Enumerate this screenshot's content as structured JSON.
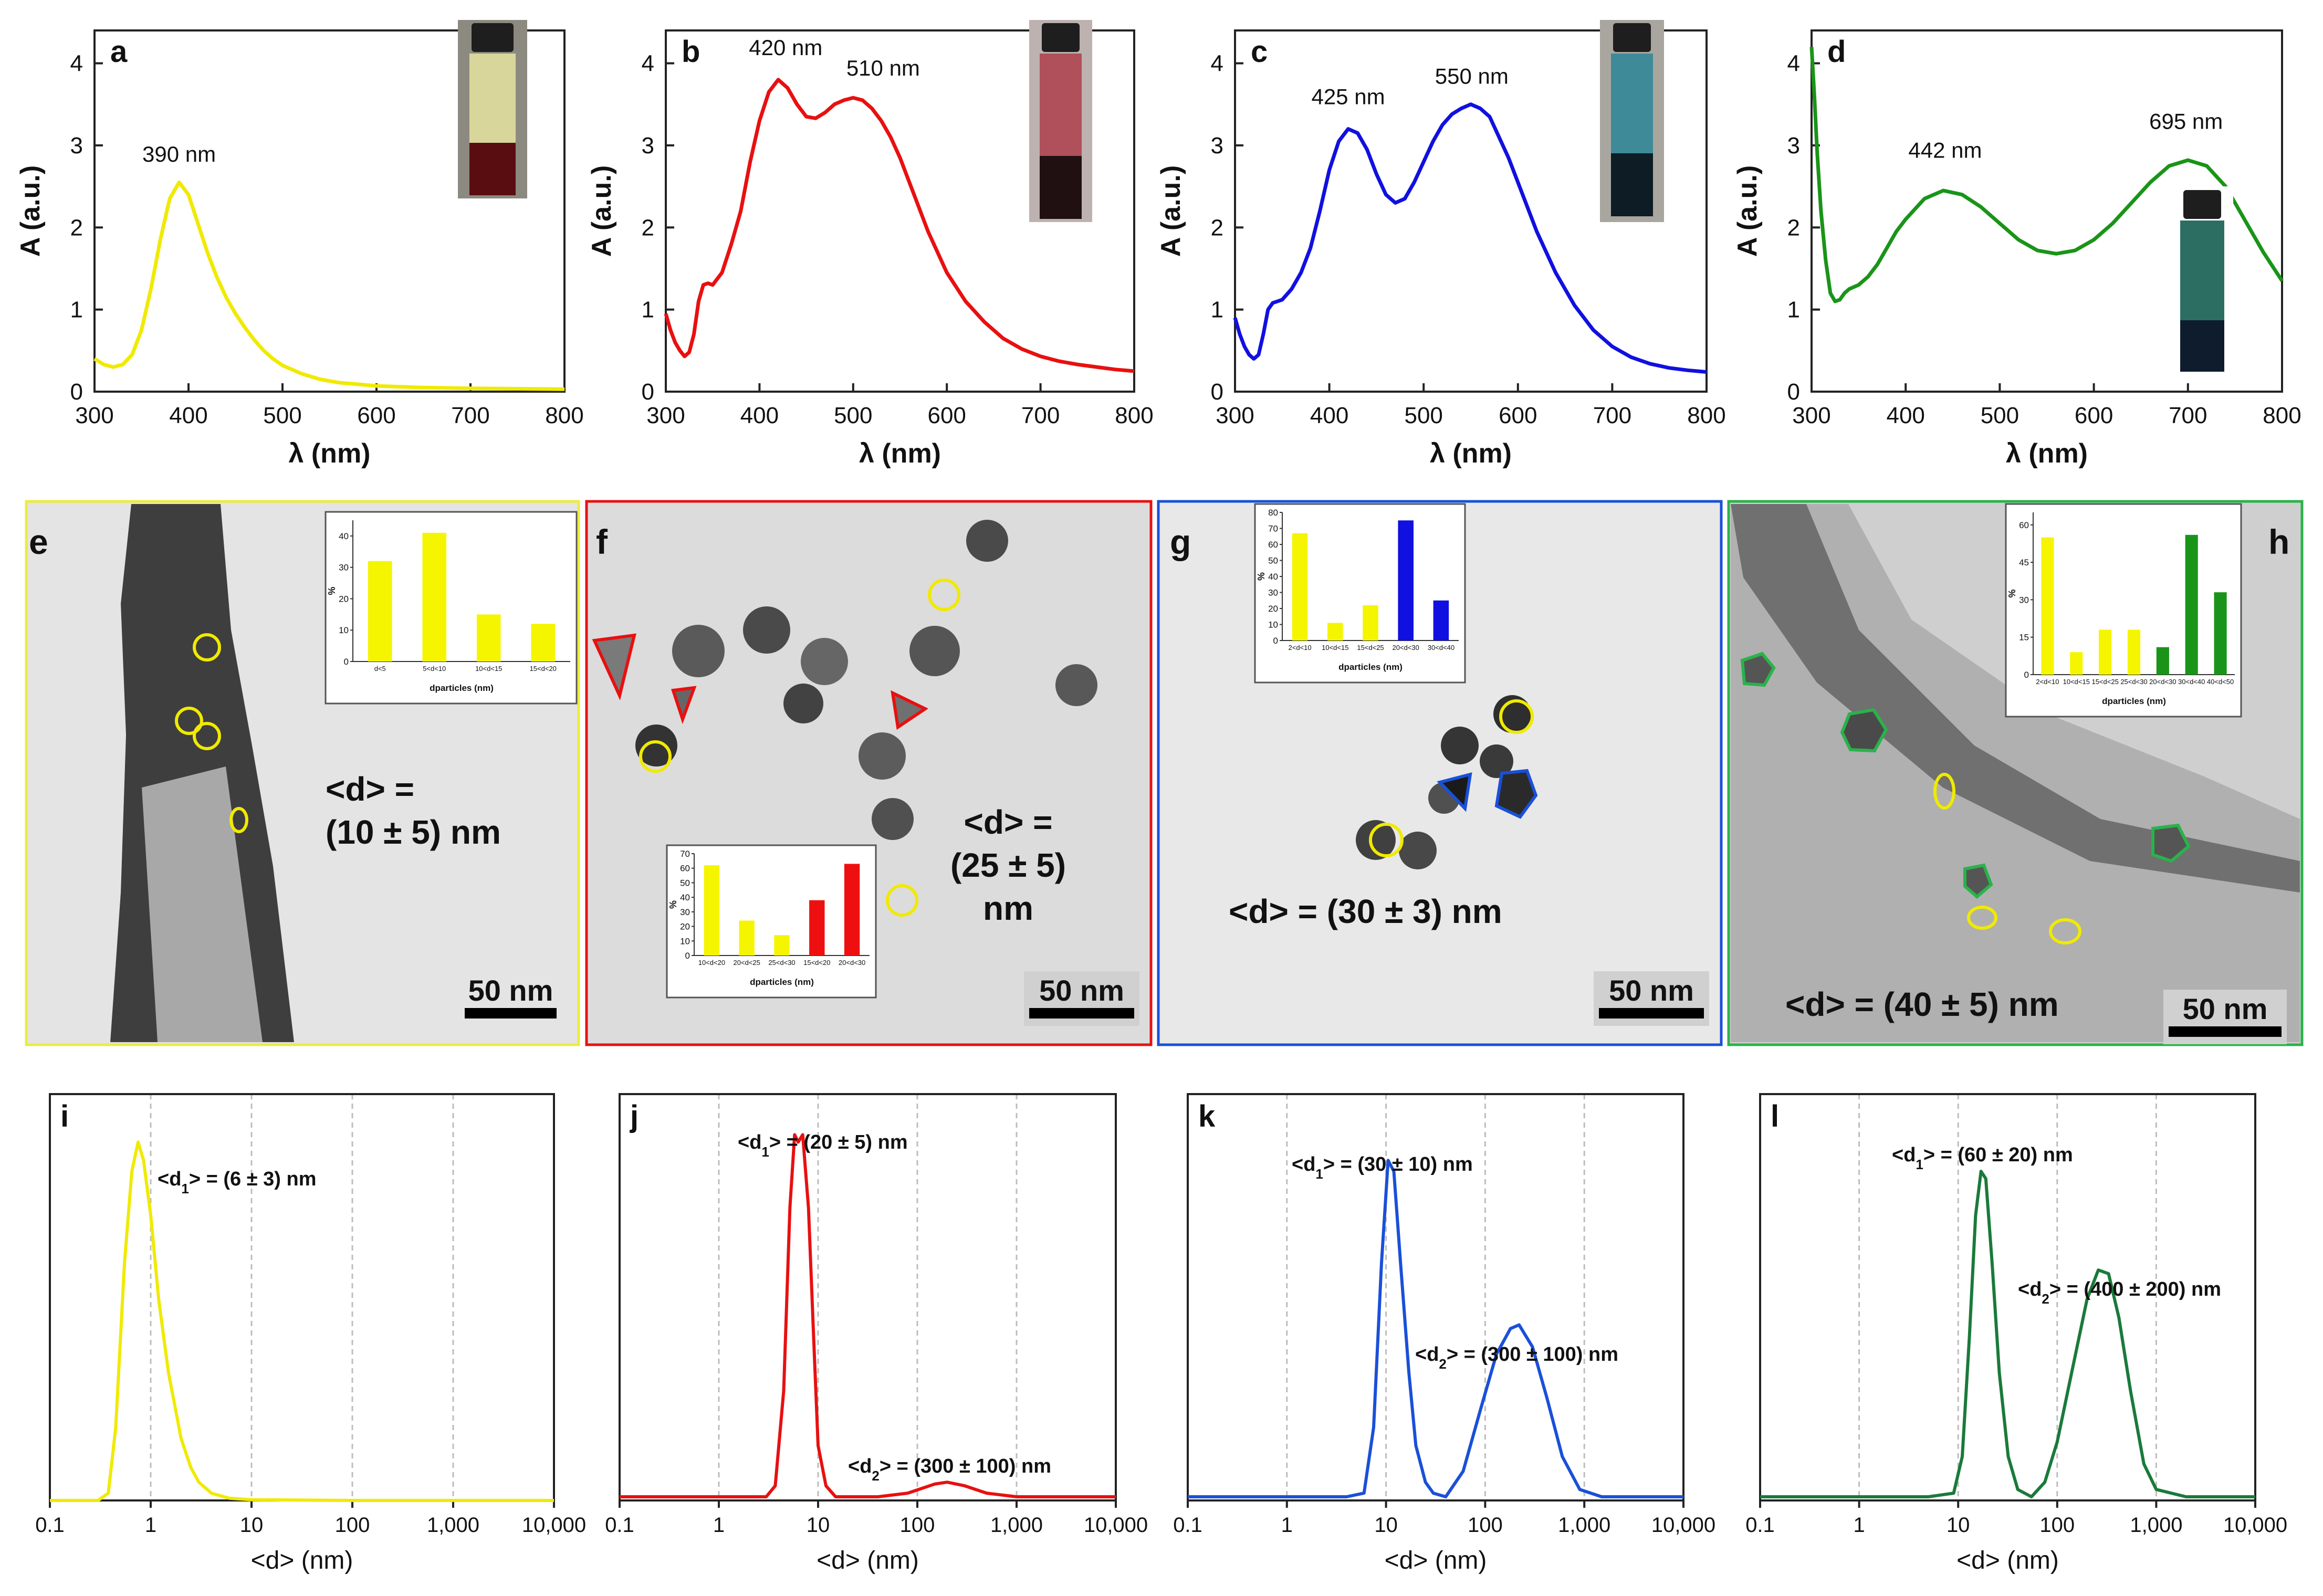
{
  "chart_data": [
    {
      "id": "a",
      "type": "line",
      "panel_label": "a",
      "xlabel": "λ (nm)",
      "ylabel": "A (a.u.)",
      "xlim": [
        300,
        800
      ],
      "ylim": [
        0,
        4.4
      ],
      "xticks": [
        300,
        400,
        500,
        600,
        700,
        800
      ],
      "yticks": [
        0,
        1,
        2,
        3,
        4
      ],
      "color": "#f0ea00",
      "series": [
        {
          "name": "spectrum a",
          "x": [
            300,
            310,
            320,
            330,
            340,
            350,
            360,
            370,
            380,
            390,
            400,
            410,
            420,
            430,
            440,
            450,
            460,
            470,
            480,
            490,
            500,
            520,
            540,
            560,
            580,
            600,
            650,
            700,
            750,
            800
          ],
          "y": [
            0.4,
            0.33,
            0.3,
            0.33,
            0.45,
            0.75,
            1.25,
            1.85,
            2.35,
            2.55,
            2.4,
            2.05,
            1.7,
            1.4,
            1.15,
            0.95,
            0.78,
            0.63,
            0.5,
            0.4,
            0.32,
            0.22,
            0.15,
            0.11,
            0.09,
            0.07,
            0.05,
            0.04,
            0.035,
            0.03
          ]
        }
      ],
      "annotations": [
        {
          "text": "390 nm",
          "x": 390,
          "y": 2.8
        }
      ]
    },
    {
      "id": "b",
      "type": "line",
      "panel_label": "b",
      "xlabel": "λ (nm)",
      "ylabel": "A (a.u.)",
      "xlim": [
        300,
        800
      ],
      "ylim": [
        0,
        4.4
      ],
      "xticks": [
        300,
        400,
        500,
        600,
        700,
        800
      ],
      "yticks": [
        0,
        1,
        2,
        3,
        4
      ],
      "color": "#e81010",
      "series": [
        {
          "name": "spectrum b",
          "x": [
            300,
            305,
            310,
            315,
            320,
            325,
            330,
            335,
            340,
            345,
            350,
            360,
            370,
            380,
            390,
            400,
            410,
            420,
            430,
            440,
            450,
            460,
            470,
            480,
            490,
            500,
            510,
            520,
            530,
            540,
            550,
            560,
            570,
            580,
            600,
            620,
            640,
            660,
            680,
            700,
            720,
            740,
            760,
            780,
            800
          ],
          "y": [
            0.95,
            0.75,
            0.6,
            0.5,
            0.43,
            0.48,
            0.7,
            1.1,
            1.3,
            1.32,
            1.3,
            1.45,
            1.8,
            2.2,
            2.8,
            3.3,
            3.65,
            3.8,
            3.7,
            3.5,
            3.35,
            3.33,
            3.4,
            3.5,
            3.55,
            3.58,
            3.55,
            3.45,
            3.3,
            3.1,
            2.85,
            2.55,
            2.25,
            1.95,
            1.45,
            1.1,
            0.85,
            0.65,
            0.52,
            0.43,
            0.37,
            0.33,
            0.3,
            0.27,
            0.25
          ]
        }
      ],
      "annotations": [
        {
          "text": "420 nm",
          "x": 428,
          "y": 4.1
        },
        {
          "text": "510 nm",
          "x": 532,
          "y": 3.85
        }
      ]
    },
    {
      "id": "c",
      "type": "line",
      "panel_label": "c",
      "xlabel": "λ (nm)",
      "ylabel": "A (a.u.)",
      "xlim": [
        300,
        800
      ],
      "ylim": [
        0,
        4.4
      ],
      "xticks": [
        300,
        400,
        500,
        600,
        700,
        800
      ],
      "yticks": [
        0,
        1,
        2,
        3,
        4
      ],
      "color": "#1010e0",
      "series": [
        {
          "name": "spectrum c",
          "x": [
            300,
            305,
            310,
            315,
            320,
            325,
            330,
            335,
            340,
            345,
            350,
            360,
            370,
            380,
            390,
            400,
            410,
            420,
            430,
            440,
            450,
            460,
            470,
            480,
            490,
            500,
            510,
            520,
            530,
            540,
            550,
            560,
            570,
            580,
            590,
            600,
            620,
            640,
            660,
            680,
            700,
            720,
            740,
            760,
            780,
            800
          ],
          "y": [
            0.9,
            0.7,
            0.55,
            0.45,
            0.4,
            0.45,
            0.7,
            1.0,
            1.08,
            1.1,
            1.12,
            1.25,
            1.45,
            1.75,
            2.2,
            2.7,
            3.05,
            3.2,
            3.15,
            2.95,
            2.65,
            2.4,
            2.3,
            2.35,
            2.55,
            2.8,
            3.05,
            3.25,
            3.38,
            3.45,
            3.5,
            3.45,
            3.35,
            3.1,
            2.85,
            2.55,
            1.95,
            1.45,
            1.05,
            0.75,
            0.55,
            0.42,
            0.34,
            0.29,
            0.26,
            0.24
          ]
        }
      ],
      "annotations": [
        {
          "text": "425 nm",
          "x": 420,
          "y": 3.5
        },
        {
          "text": "550 nm",
          "x": 551,
          "y": 3.75
        }
      ]
    },
    {
      "id": "d",
      "type": "line",
      "panel_label": "d",
      "xlabel": "λ (nm)",
      "ylabel": "A (a.u.)",
      "xlim": [
        300,
        800
      ],
      "ylim": [
        0,
        4.4
      ],
      "xticks": [
        300,
        400,
        500,
        600,
        700,
        800
      ],
      "yticks": [
        0,
        1,
        2,
        3,
        4
      ],
      "color": "#1a9418",
      "series": [
        {
          "name": "spectrum d",
          "x": [
            300,
            303,
            306,
            310,
            315,
            320,
            325,
            330,
            335,
            340,
            350,
            360,
            370,
            380,
            390,
            400,
            420,
            440,
            460,
            480,
            500,
            520,
            540,
            560,
            580,
            600,
            620,
            640,
            660,
            680,
            700,
            720,
            740,
            760,
            780,
            800
          ],
          "y": [
            4.2,
            3.6,
            2.9,
            2.2,
            1.6,
            1.2,
            1.1,
            1.12,
            1.2,
            1.25,
            1.3,
            1.4,
            1.55,
            1.75,
            1.95,
            2.1,
            2.35,
            2.45,
            2.4,
            2.25,
            2.05,
            1.85,
            1.72,
            1.68,
            1.72,
            1.85,
            2.05,
            2.3,
            2.55,
            2.75,
            2.82,
            2.75,
            2.5,
            2.1,
            1.7,
            1.35
          ]
        }
      ],
      "annotations": [
        {
          "text": "442 nm",
          "x": 442,
          "y": 2.85
        },
        {
          "text": "695 nm",
          "x": 698,
          "y": 3.2
        }
      ]
    },
    {
      "id": "e_hist",
      "type": "bar",
      "panel_label": "e",
      "xlabel": "dparticles (nm)",
      "ylabel": "%",
      "ylim": [
        0,
        45
      ],
      "yticks": [
        0,
        10,
        20,
        30,
        40
      ],
      "categories": [
        "d<5",
        "5<d<10",
        "10<d<15",
        "15<d<20"
      ],
      "values": [
        32,
        41,
        15,
        12
      ],
      "colors": [
        "#f5f500",
        "#f5f500",
        "#f5f500",
        "#f5f500"
      ],
      "annotation": "<d> =\n(10 ± 5) nm",
      "annotation_color": "#111111",
      "scale_bar": "50 nm"
    },
    {
      "id": "f_hist",
      "type": "bar",
      "panel_label": "f",
      "xlabel": "dparticles (nm)",
      "ylabel": "%",
      "ylim": [
        0,
        70
      ],
      "yticks": [
        0,
        10,
        20,
        30,
        40,
        50,
        60,
        70
      ],
      "categories": [
        "10<d<20",
        "20<d<25",
        "25<d<30",
        "15<d<20",
        "20<d<30"
      ],
      "values": [
        62,
        24,
        14,
        38,
        63
      ],
      "colors": [
        "#f5f500",
        "#f5f500",
        "#f5f500",
        "#ee1010",
        "#ee1010"
      ],
      "annotation": "<d> =\n(25 ± 5)\nnm",
      "annotation_color": "#e81010",
      "scale_bar": "50 nm"
    },
    {
      "id": "g_hist",
      "type": "bar",
      "panel_label": "g",
      "xlabel": "dparticles (nm)",
      "ylabel": "%",
      "ylim": [
        0,
        80
      ],
      "yticks": [
        0,
        10,
        20,
        30,
        40,
        50,
        60,
        70,
        80
      ],
      "categories": [
        "2<d<10",
        "10<d<15",
        "15<d<25",
        "20<d<30",
        "30<d<40"
      ],
      "values": [
        67,
        11,
        22,
        75,
        25
      ],
      "colors": [
        "#f5f500",
        "#f5f500",
        "#f5f500",
        "#1010e0",
        "#1010e0"
      ],
      "annotation": "<d> = (30 ± 3) nm",
      "annotation_color": "#1a4fd8",
      "scale_bar": "50 nm"
    },
    {
      "id": "h_hist",
      "type": "bar",
      "panel_label": "h",
      "xlabel": "dparticles (nm)",
      "ylabel": "%",
      "ylim": [
        0,
        65
      ],
      "yticks": [
        0,
        15,
        30,
        45,
        60
      ],
      "categories": [
        "2<d<10",
        "10<d<15",
        "15<d<25",
        "25<d<30",
        "20<d<30",
        "30<d<40",
        "40<d<50"
      ],
      "values": [
        55,
        9,
        18,
        18,
        11,
        56,
        33
      ],
      "colors": [
        "#f5f500",
        "#f5f500",
        "#f5f500",
        "#f5f500",
        "#1a9418",
        "#1a9418",
        "#1a9418"
      ],
      "annotation": "<d> = (40 ± 5) nm",
      "annotation_color": "#29b34a",
      "scale_bar": "50 nm"
    },
    {
      "id": "i",
      "type": "line",
      "panel_label": "i",
      "xscale": "log",
      "xlabel": "<d> (nm)",
      "xlim": [
        0.1,
        10000
      ],
      "xticks": [
        0.1,
        1,
        10,
        100,
        1000,
        10000
      ],
      "xticklabels": [
        "0.1",
        "1",
        "10",
        "100",
        "1,000",
        "10,000"
      ],
      "ylim": [
        0,
        1
      ],
      "color": "#f0ea00",
      "series": [
        {
          "name": "i",
          "x": [
            0.1,
            0.3,
            0.38,
            0.45,
            0.55,
            0.65,
            0.75,
            0.85,
            1.0,
            1.2,
            1.5,
            2,
            2.5,
            3,
            4,
            6,
            10,
            100,
            1000,
            10000
          ],
          "y": [
            0,
            0,
            0.02,
            0.2,
            0.65,
            0.9,
            0.98,
            0.93,
            0.78,
            0.55,
            0.35,
            0.17,
            0.09,
            0.05,
            0.02,
            0.006,
            0.002,
            0,
            0,
            0
          ]
        }
      ],
      "annotations": [
        {
          "label": "<d",
          "sub": "1",
          "rest": "> = (6 ± 3) nm"
        }
      ]
    },
    {
      "id": "j",
      "type": "line",
      "panel_label": "j",
      "xscale": "log",
      "xlabel": "<d> (nm)",
      "xlim": [
        0.1,
        10000
      ],
      "xticks": [
        0.1,
        1,
        10,
        100,
        1000,
        10000
      ],
      "xticklabels": [
        "0.1",
        "1",
        "10",
        "100",
        "1,000",
        "10,000"
      ],
      "ylim": [
        0,
        1
      ],
      "color": "#e81010",
      "series": [
        {
          "name": "j",
          "x": [
            0.1,
            1,
            3,
            3.7,
            4.5,
            5.2,
            5.8,
            6.3,
            7,
            8,
            9,
            10,
            12,
            15,
            20,
            40,
            80,
            150,
            200,
            300,
            500,
            1000,
            3000,
            10000
          ],
          "y": [
            0.01,
            0.01,
            0.01,
            0.04,
            0.3,
            0.8,
            1.0,
            0.98,
            1.0,
            0.8,
            0.45,
            0.15,
            0.04,
            0.01,
            0.01,
            0.01,
            0.02,
            0.045,
            0.05,
            0.04,
            0.02,
            0.01,
            0.01,
            0.01
          ]
        }
      ],
      "annotations": [
        {
          "label": "<d",
          "sub": "1",
          "rest": "> = (20 ± 5) nm"
        },
        {
          "label": "<d",
          "sub": "2",
          "rest": "> = (300 ± 100) nm"
        }
      ]
    },
    {
      "id": "k",
      "type": "line",
      "panel_label": "k",
      "xscale": "log",
      "xlabel": "<d> (nm)",
      "xlim": [
        0.1,
        10000
      ],
      "xticks": [
        0.1,
        1,
        10,
        100,
        1000,
        10000
      ],
      "xticklabels": [
        "0.1",
        "1",
        "10",
        "100",
        "1,000",
        "10,000"
      ],
      "ylim": [
        0,
        1
      ],
      "color": "#1a50d8",
      "series": [
        {
          "name": "k",
          "x": [
            0.1,
            1,
            4,
            6,
            7.5,
            9,
            10.5,
            12,
            14,
            17,
            20,
            25,
            30,
            40,
            60,
            90,
            130,
            180,
            220,
            300,
            420,
            600,
            900,
            1500,
            10000
          ],
          "y": [
            0.01,
            0.01,
            0.01,
            0.02,
            0.2,
            0.65,
            0.93,
            0.9,
            0.65,
            0.35,
            0.15,
            0.05,
            0.02,
            0.01,
            0.08,
            0.25,
            0.4,
            0.47,
            0.48,
            0.42,
            0.28,
            0.12,
            0.03,
            0.01,
            0.01
          ]
        }
      ],
      "annotations": [
        {
          "label": "<d",
          "sub": "1",
          "rest": "> = (30 ± 10) nm"
        },
        {
          "label": "<d",
          "sub": "2",
          "rest": "> = (300 ± 100) nm"
        }
      ]
    },
    {
      "id": "l",
      "type": "line",
      "panel_label": "l",
      "xscale": "log",
      "xlabel": "<d> (nm)",
      "xlim": [
        0.1,
        10000
      ],
      "xticks": [
        0.1,
        1,
        10,
        100,
        1000,
        10000
      ],
      "xticklabels": [
        "0.1",
        "1",
        "10",
        "100",
        "1,000",
        "10,000"
      ],
      "ylim": [
        0,
        1
      ],
      "color": "#1a7a3a",
      "series": [
        {
          "name": "l",
          "x": [
            0.1,
            1,
            5,
            9,
            11,
            13,
            15,
            17,
            19,
            22,
            26,
            32,
            40,
            55,
            75,
            100,
            140,
            200,
            260,
            330,
            420,
            550,
            750,
            1000,
            2000,
            10000
          ],
          "y": [
            0.01,
            0.01,
            0.01,
            0.02,
            0.12,
            0.45,
            0.78,
            0.9,
            0.88,
            0.65,
            0.35,
            0.12,
            0.03,
            0.01,
            0.05,
            0.16,
            0.35,
            0.55,
            0.63,
            0.62,
            0.5,
            0.3,
            0.1,
            0.03,
            0.01,
            0.01
          ]
        }
      ],
      "annotations": [
        {
          "label": "<d",
          "sub": "1",
          "rest": "> = (60 ± 20) nm"
        },
        {
          "label": "<d",
          "sub": "2",
          "rest": "> = (400 ± 200) nm"
        }
      ]
    }
  ]
}
